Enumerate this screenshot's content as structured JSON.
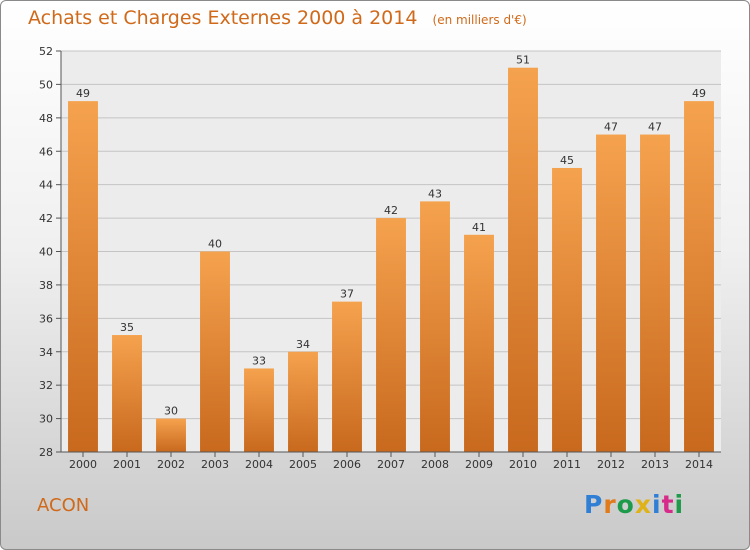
{
  "header": {
    "title": "Achats et Charges Externes 2000 à 2014",
    "unit": "(en milliers d'€)"
  },
  "footer": {
    "commune": "ACON",
    "brand": "Proxiti"
  },
  "colors": {
    "accent": "#d06a1a",
    "bar_light": "#f5a24e",
    "bar_dark": "#c8691e",
    "brand_letters": [
      "#2f7fd4",
      "#e07a1a",
      "#1e9b4a",
      "#e0b21a",
      "#2f7fd4",
      "#d62b8a",
      "#1e9b4a"
    ]
  },
  "chart_data": {
    "type": "bar",
    "title": "Achats et Charges Externes 2000 à 2014",
    "xlabel": "",
    "ylabel": "",
    "categories": [
      "2000",
      "2001",
      "2002",
      "2003",
      "2004",
      "2005",
      "2006",
      "2007",
      "2008",
      "2009",
      "2010",
      "2011",
      "2012",
      "2013",
      "2014"
    ],
    "values": [
      49,
      35,
      30,
      40,
      33,
      34,
      37,
      42,
      43,
      41,
      51,
      45,
      47,
      47,
      49
    ],
    "ylim": [
      28,
      52
    ],
    "yticks": [
      28,
      30,
      32,
      34,
      36,
      38,
      40,
      42,
      44,
      46,
      48,
      50,
      52
    ],
    "grid": true,
    "data_labels": true,
    "legend": "none"
  }
}
